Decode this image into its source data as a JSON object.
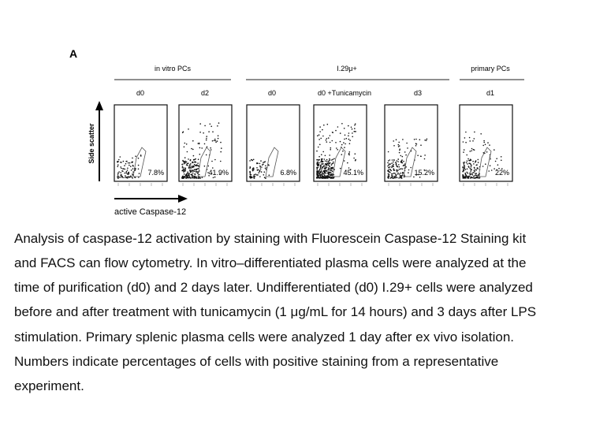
{
  "figure": {
    "panel_label": "A",
    "groups": [
      "in vitro PCs",
      "I.29μ+",
      "primary PCs"
    ],
    "panels": [
      {
        "label": "d0",
        "percent": "7.8%"
      },
      {
        "label": "d2",
        "percent": "41.9%"
      },
      {
        "label": "d0",
        "percent": "6.8%"
      },
      {
        "label": "d0 +Tunicamycin",
        "percent": "45.1%"
      },
      {
        "label": "d3",
        "percent": "15.2%"
      },
      {
        "label": "d1",
        "percent": "22%"
      }
    ],
    "y_axis_label": "Side scatter",
    "x_axis_label": "active Caspase-12"
  },
  "caption": [
    "Analysis of caspase-12 activation by staining with Fluorescein Caspase-12 Staining kit",
    "and FACS can flow cytometry. In vitro–differentiated plasma cells were analyzed at the",
    "time of purification (d0) and 2 days later. Undifferentiated (d0) I.29+ cells were analyzed",
    "before and after treatment with tunicamycin (1 μg/mL for 14 hours) and 3 days after LPS",
    "stimulation. Primary splenic plasma cells were analyzed 1 day after ex vivo isolation.",
    "Numbers indicate percentages of cells with positive staining from a representative",
    "experiment."
  ]
}
